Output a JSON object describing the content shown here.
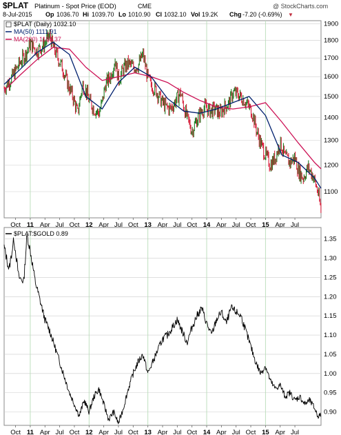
{
  "header": {
    "symbol": "$PLAT",
    "name": "Platinum - Spot Price (EOD)",
    "exchange": "CME",
    "watermark": "@ StockCharts.com",
    "date": "8-Jul-2015",
    "open_label": "Op",
    "open": "1036.70",
    "high_label": "Hi",
    "high": "1039.70",
    "low_label": "Lo",
    "low": "1010.90",
    "close_label": "Cl",
    "close": "1032.10",
    "vol_label": "Vol",
    "vol": "19.2K",
    "chg_label": "Chg",
    "chg": "-7.20 (-0.69%)",
    "chg_arrow": "▼"
  },
  "colors": {
    "up_bar": "#1f7a1f",
    "down_bar": "#d61f3a",
    "ma50": "#00206e",
    "ma200": "#cc1155",
    "ratio_line": "#000000",
    "grid_vertical": "#b8dcb8",
    "grid_horizontal": "#cccccc"
  },
  "chart_data": [
    {
      "type": "line",
      "title": "$PLAT (Daily) 1032.10",
      "legend": [
        {
          "label": "$PLAT (Daily) 1032.10",
          "style": "bars"
        },
        {
          "label": "MA(50) 1111.91",
          "color": "#00206e"
        },
        {
          "label": "MA(200) 1185.37",
          "color": "#cc1155"
        }
      ],
      "legend_placement": "top-left",
      "x_ticks": [
        "Oct",
        "11",
        "Apr",
        "Jul",
        "Oct",
        "12",
        "Apr",
        "Jul",
        "Oct",
        "13",
        "Apr",
        "Jul",
        "Oct",
        "14",
        "Apr",
        "Jul",
        "Oct",
        "15",
        "Apr",
        "Jul"
      ],
      "y_ticks": [
        1100,
        1200,
        1300,
        1400,
        1500,
        1600,
        1700,
        1800,
        1900
      ],
      "ylim": [
        1010,
        1920
      ],
      "scale": "log",
      "series": [
        {
          "name": "$PLAT",
          "x": [
            0,
            0.5,
            1,
            1.3,
            1.6,
            2,
            2.4,
            2.8,
            3,
            3.3,
            3.6,
            3.9,
            4.2,
            4.5,
            4.8,
            5,
            5.2,
            5.5,
            5.8,
            6,
            6.2,
            6.5,
            6.8,
            7,
            7.3,
            7.6,
            7.9,
            8.2,
            8.5,
            8.8,
            9,
            9.3,
            9.6,
            9.9,
            10.2,
            10.5,
            10.8,
            11,
            11.2,
            11.5,
            11.8,
            12,
            12.3,
            12.6,
            12.9,
            13.2,
            13.5,
            13.8,
            14,
            14.3,
            14.6,
            14.9,
            15.2,
            15.5,
            15.8,
            16,
            16.3,
            16.6,
            16.9,
            17.2,
            17.5,
            17.8,
            18,
            18.3,
            18.6,
            18.9,
            19.2,
            19.4
          ],
          "values": [
            1540,
            1600,
            1680,
            1720,
            1780,
            1740,
            1770,
            1830,
            1760,
            1700,
            1640,
            1560,
            1500,
            1420,
            1560,
            1530,
            1480,
            1440,
            1420,
            1470,
            1560,
            1600,
            1690,
            1580,
            1640,
            1670,
            1650,
            1660,
            1720,
            1590,
            1560,
            1530,
            1480,
            1450,
            1440,
            1480,
            1520,
            1450,
            1400,
            1340,
            1390,
            1420,
            1450,
            1430,
            1440,
            1420,
            1450,
            1470,
            1520,
            1510,
            1490,
            1460,
            1420,
            1330,
            1270,
            1240,
            1200,
            1230,
            1290,
            1230,
            1210,
            1230,
            1180,
            1150,
            1190,
            1160,
            1100,
            1032
          ]
        },
        {
          "name": "MA(50)",
          "x": [
            0,
            1,
            2,
            3,
            4,
            5,
            6,
            7,
            8,
            9,
            10,
            11,
            12,
            13,
            14,
            15,
            16,
            17,
            18,
            19,
            19.4
          ],
          "values": [
            1560,
            1640,
            1730,
            1790,
            1720,
            1500,
            1440,
            1570,
            1650,
            1600,
            1490,
            1430,
            1420,
            1440,
            1470,
            1500,
            1410,
            1240,
            1210,
            1150,
            1112
          ]
        },
        {
          "name": "MA(200)",
          "x": [
            0,
            1,
            2,
            3,
            4,
            5,
            6,
            7,
            8,
            9,
            10,
            11,
            12,
            13,
            14,
            15,
            16,
            17,
            18,
            19,
            19.4
          ],
          "values": [
            1530,
            1610,
            1690,
            1760,
            1750,
            1650,
            1580,
            1600,
            1620,
            1600,
            1570,
            1520,
            1480,
            1450,
            1440,
            1450,
            1470,
            1380,
            1290,
            1210,
            1185
          ]
        }
      ]
    },
    {
      "type": "line",
      "title": "$PLAT:$GOLD 0.89",
      "legend": [
        {
          "label": "$PLAT:$GOLD 0.89",
          "color": "#000000"
        }
      ],
      "legend_placement": "top-left",
      "x_ticks": [
        "Oct",
        "11",
        "Apr",
        "Jul",
        "Oct",
        "12",
        "Apr",
        "Jul",
        "Oct",
        "13",
        "Apr",
        "Jul",
        "Oct",
        "14",
        "Apr",
        "Jul",
        "Oct",
        "15",
        "Apr",
        "Jul"
      ],
      "y_ticks": [
        0.9,
        0.95,
        1.0,
        1.05,
        1.1,
        1.15,
        1.2,
        1.25,
        1.3,
        1.35
      ],
      "ylim": [
        0.865,
        1.38
      ],
      "series": [
        {
          "name": "$PLAT:$GOLD",
          "x": [
            0,
            0.3,
            0.6,
            0.9,
            1.2,
            1.4,
            1.6,
            1.9,
            2.2,
            2.5,
            2.8,
            3.1,
            3.4,
            3.7,
            4,
            4.3,
            4.6,
            4.9,
            5.2,
            5.5,
            5.8,
            6.1,
            6.4,
            6.7,
            7,
            7.3,
            7.6,
            7.9,
            8.2,
            8.5,
            8.8,
            9.1,
            9.4,
            9.7,
            10,
            10.3,
            10.6,
            10.9,
            11.2,
            11.5,
            11.8,
            12.1,
            12.4,
            12.7,
            13,
            13.3,
            13.6,
            13.9,
            14.2,
            14.5,
            14.8,
            15.1,
            15.4,
            15.7,
            16,
            16.3,
            16.6,
            16.9,
            17.2,
            17.5,
            17.8,
            18.1,
            18.4,
            18.7,
            19,
            19.2,
            19.4
          ],
          "values": [
            1.33,
            1.27,
            1.35,
            1.25,
            1.24,
            1.36,
            1.32,
            1.24,
            1.19,
            1.14,
            1.11,
            1.07,
            1.03,
            0.99,
            0.95,
            0.92,
            0.89,
            0.93,
            0.9,
            0.94,
            0.96,
            0.92,
            0.88,
            0.9,
            0.87,
            0.91,
            0.96,
            1.0,
            1.03,
            1.05,
            1.0,
            1.03,
            1.06,
            1.09,
            1.1,
            1.12,
            1.14,
            1.11,
            1.08,
            1.12,
            1.15,
            1.17,
            1.13,
            1.1,
            1.14,
            1.16,
            1.13,
            1.17,
            1.16,
            1.15,
            1.11,
            1.07,
            1.03,
            1.0,
            1.02,
            0.98,
            0.96,
            0.97,
            0.94,
            0.95,
            0.93,
            0.94,
            0.92,
            0.93,
            0.91,
            0.89,
            0.89
          ]
        }
      ]
    }
  ]
}
